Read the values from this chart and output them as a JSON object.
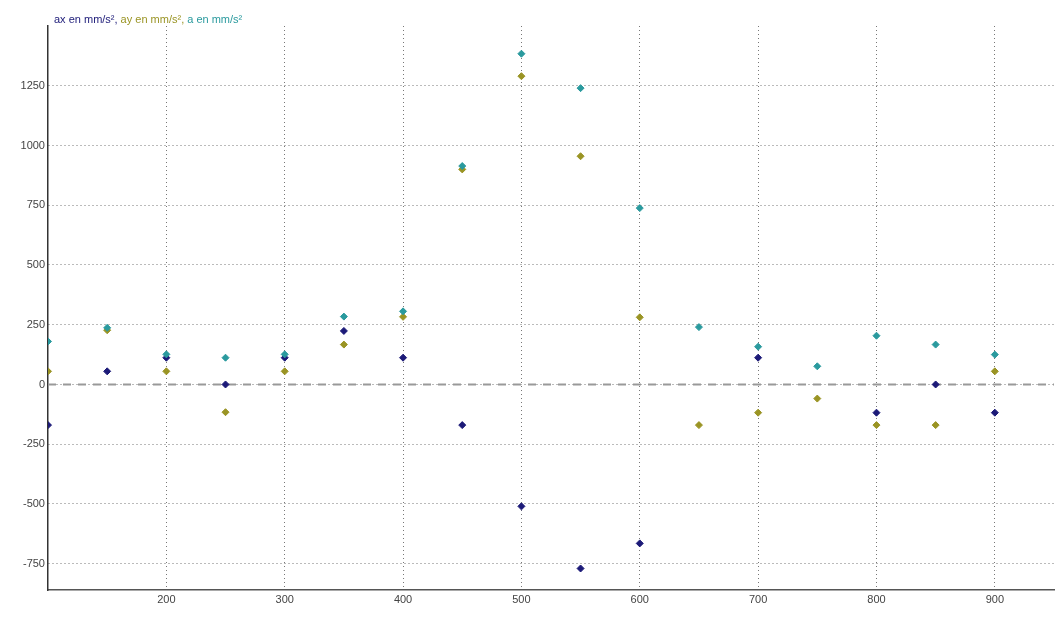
{
  "chart_data": {
    "type": "scatter",
    "x": [
      100,
      150,
      200,
      250,
      300,
      350,
      400,
      450,
      500,
      550,
      600,
      650,
      700,
      750,
      800,
      850,
      900
    ],
    "series": [
      {
        "name": "ax en mm/s²,",
        "color": "#1c1a78",
        "values": [
          -170,
          55,
          112,
          0,
          112,
          224,
          112,
          -170,
          -510,
          -770,
          -665,
          null,
          112,
          null,
          -118,
          0,
          -118
        ]
      },
      {
        "name": "ay en mm/s²,",
        "color": "#9a9424",
        "values": [
          55,
          227,
          55,
          -116,
          55,
          167,
          283,
          900,
          1290,
          955,
          281,
          -170,
          -118,
          -59,
          -170,
          -170,
          55
        ]
      },
      {
        "name": "a en mm/s²",
        "color": "#2a9a9e",
        "values": [
          180,
          237,
          126,
          112,
          126,
          284,
          306,
          914,
          1384,
          1240,
          738,
          240,
          158,
          76,
          204,
          167,
          125
        ]
      }
    ],
    "xlim": [
      100,
      950
    ],
    "ylim": [
      -860,
      1500
    ],
    "xticks": [
      200,
      300,
      400,
      500,
      600,
      700,
      800,
      900
    ],
    "yticks": [
      -750,
      -500,
      -250,
      0,
      250,
      500,
      750,
      1000,
      1250
    ],
    "grid": true,
    "legend": "top left",
    "marker": "diamond",
    "ref_lines": [
      {
        "axis": "y",
        "value": 0,
        "color": "#999999",
        "line_style": "dashed"
      }
    ]
  }
}
